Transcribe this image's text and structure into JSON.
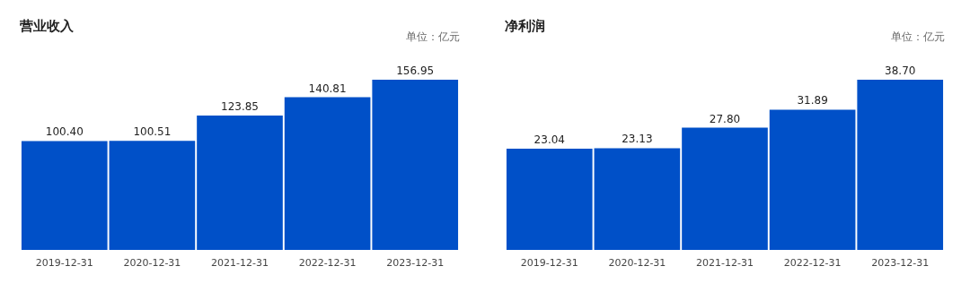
{
  "chart_data": [
    {
      "type": "bar",
      "title": "营业收入",
      "subtitle": "单位：亿元",
      "categories": [
        "2019-12-31",
        "2020-12-31",
        "2021-12-31",
        "2022-12-31",
        "2023-12-31"
      ],
      "values": [
        100.4,
        100.51,
        123.85,
        140.81,
        156.95
      ],
      "value_labels": [
        "100.40",
        "100.51",
        "123.85",
        "140.81",
        "156.95"
      ],
      "color": "#0050c8"
    },
    {
      "type": "bar",
      "title": "净利润",
      "subtitle": "单位：亿元",
      "categories": [
        "2019-12-31",
        "2020-12-31",
        "2021-12-31",
        "2022-12-31",
        "2023-12-31"
      ],
      "values": [
        23.04,
        23.13,
        27.8,
        31.89,
        38.7
      ],
      "value_labels": [
        "23.04",
        "23.13",
        "27.80",
        "31.89",
        "38.70"
      ],
      "color": "#0050c8"
    }
  ]
}
